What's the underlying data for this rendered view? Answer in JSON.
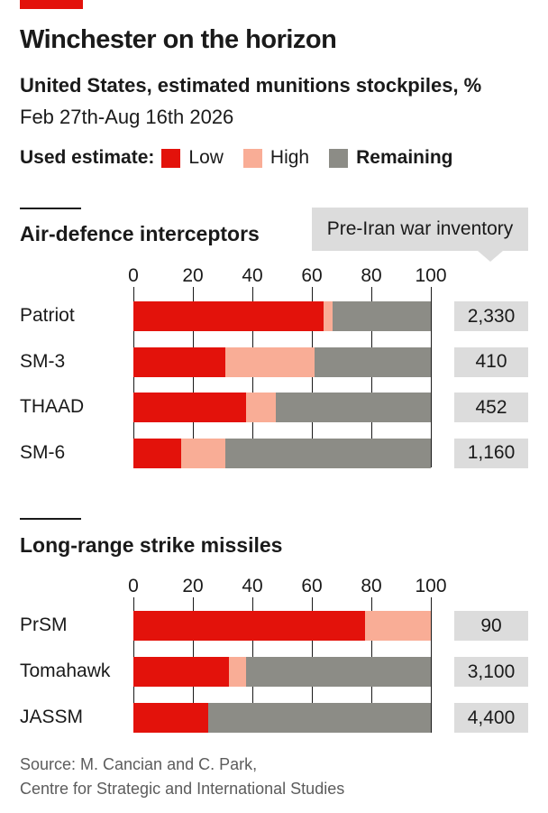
{
  "title": "Winchester on the horizon",
  "subtitle": "United States, estimated munitions stockpiles, %",
  "date_range": "Feb 27th-Aug 16th 2026",
  "legend": {
    "label": "Used estimate:",
    "items": [
      {
        "label": "Low",
        "color": "#e3120b"
      },
      {
        "label": "High",
        "color": "#f9ad96"
      },
      {
        "label": "Remaining",
        "color": "#8c8c86"
      }
    ]
  },
  "inventory_header": "Pre-Iran war inventory",
  "colors": {
    "low": "#e3120b",
    "high": "#f9ad96",
    "remaining": "#8c8c86",
    "inventory_bg": "#dcdcdc",
    "accent": "#e3120b"
  },
  "chart_data": [
    {
      "type": "bar",
      "orientation": "horizontal",
      "stacked": true,
      "title": "Air-defence interceptors",
      "xlim": [
        0,
        100
      ],
      "xticks": [
        "0",
        "20",
        "40",
        "60",
        "80",
        "100"
      ],
      "categories": [
        "Patriot",
        "SM-3",
        "THAAD",
        "SM-6"
      ],
      "series": [
        {
          "name": "Low",
          "values": [
            64,
            31,
            38,
            16
          ]
        },
        {
          "name": "High",
          "values": [
            3,
            30,
            10,
            15
          ]
        },
        {
          "name": "Remaining",
          "values": [
            33,
            39,
            52,
            69
          ]
        }
      ],
      "inventory": [
        "2,330",
        "410",
        "452",
        "1,160"
      ]
    },
    {
      "type": "bar",
      "orientation": "horizontal",
      "stacked": true,
      "title": "Long-range strike missiles",
      "xlim": [
        0,
        100
      ],
      "xticks": [
        "0",
        "20",
        "40",
        "60",
        "80",
        "100"
      ],
      "categories": [
        "PrSM",
        "Tomahawk",
        "JASSM"
      ],
      "series": [
        {
          "name": "Low",
          "values": [
            78,
            32,
            25
          ]
        },
        {
          "name": "High",
          "values": [
            22,
            6,
            0
          ]
        },
        {
          "name": "Remaining",
          "values": [
            0,
            62,
            75
          ]
        }
      ],
      "inventory": [
        "90",
        "3,100",
        "4,400"
      ]
    }
  ],
  "source_line1": "Source: M. Cancian and C. Park,",
  "source_line2": "Centre for Strategic and International Studies"
}
